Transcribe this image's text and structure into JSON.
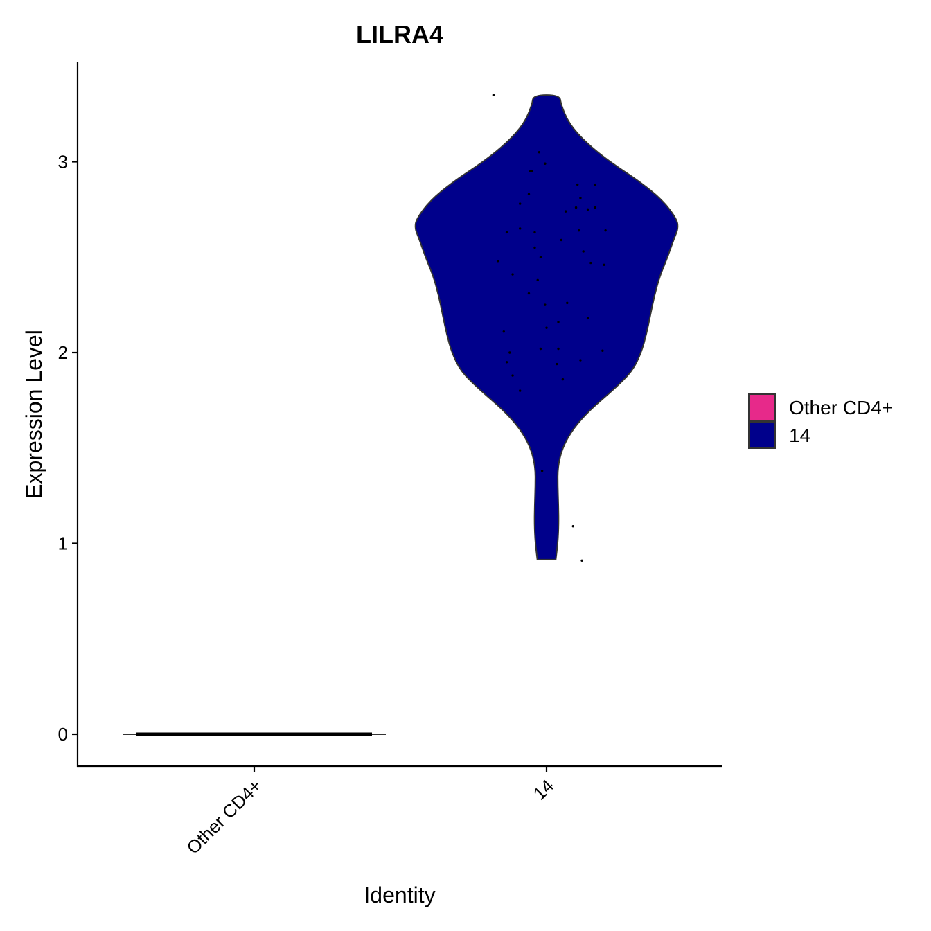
{
  "chart_data": {
    "type": "violin",
    "title": "LILRA4",
    "xlabel": "Identity",
    "ylabel": "Expression Level",
    "categories": [
      "Other CD4+",
      "14"
    ],
    "y_ticks": [
      "0",
      "1",
      "2",
      "3"
    ],
    "ylim": [
      -0.17,
      3.52
    ],
    "colors": {
      "Other CD4+": "#e7298a",
      "14": "#00008b"
    },
    "legend": {
      "position": "right",
      "entries": [
        {
          "label": "Other CD4+",
          "color": "#e7298a"
        },
        {
          "label": "14",
          "color": "#00008b"
        }
      ]
    },
    "series": [
      {
        "category": "Other CD4+",
        "points": [
          0,
          0,
          0,
          0,
          0,
          0,
          0,
          0,
          0,
          0,
          0,
          0,
          0,
          0,
          0,
          0,
          0,
          0,
          0,
          0,
          0,
          0,
          0,
          0,
          0,
          0,
          0,
          0,
          0,
          0,
          0,
          0,
          0,
          0,
          0,
          0,
          0,
          0,
          0,
          0,
          0,
          0,
          0,
          0,
          0,
          0,
          0,
          0,
          0,
          0,
          0,
          0,
          0,
          0,
          0,
          0,
          0,
          0,
          0,
          0
        ],
        "density_profile": [
          {
            "y": 0.0,
            "w": 1.0
          }
        ]
      },
      {
        "category": "14",
        "points": [
          {
            "x": -0.36,
            "y": 3.35
          },
          {
            "x": -0.05,
            "y": 3.05
          },
          {
            "x": -0.11,
            "y": 2.95
          },
          {
            "x": -0.1,
            "y": 2.95
          },
          {
            "x": -0.01,
            "y": 2.99
          },
          {
            "x": 0.21,
            "y": 2.88
          },
          {
            "x": 0.33,
            "y": 2.88
          },
          {
            "x": -0.12,
            "y": 2.83
          },
          {
            "x": 0.23,
            "y": 2.81
          },
          {
            "x": -0.18,
            "y": 2.78
          },
          {
            "x": 0.2,
            "y": 2.76
          },
          {
            "x": 0.28,
            "y": 2.75
          },
          {
            "x": 0.33,
            "y": 2.76
          },
          {
            "x": 0.13,
            "y": 2.74
          },
          {
            "x": -0.18,
            "y": 2.65
          },
          {
            "x": 0.22,
            "y": 2.64
          },
          {
            "x": -0.27,
            "y": 2.63
          },
          {
            "x": -0.08,
            "y": 2.63
          },
          {
            "x": 0.4,
            "y": 2.64
          },
          {
            "x": 0.1,
            "y": 2.59
          },
          {
            "x": -0.08,
            "y": 2.55
          },
          {
            "x": 0.25,
            "y": 2.53
          },
          {
            "x": -0.04,
            "y": 2.5
          },
          {
            "x": -0.33,
            "y": 2.48
          },
          {
            "x": 0.3,
            "y": 2.47
          },
          {
            "x": 0.39,
            "y": 2.46
          },
          {
            "x": -0.23,
            "y": 2.41
          },
          {
            "x": -0.06,
            "y": 2.38
          },
          {
            "x": -0.12,
            "y": 2.31
          },
          {
            "x": 0.14,
            "y": 2.26
          },
          {
            "x": -0.01,
            "y": 2.25
          },
          {
            "x": 0.28,
            "y": 2.18
          },
          {
            "x": 0.08,
            "y": 2.16
          },
          {
            "x": 0.0,
            "y": 2.13
          },
          {
            "x": -0.29,
            "y": 2.11
          },
          {
            "x": -0.25,
            "y": 2.0
          },
          {
            "x": -0.04,
            "y": 2.02
          },
          {
            "x": 0.08,
            "y": 2.02
          },
          {
            "x": 0.38,
            "y": 2.01
          },
          {
            "x": -0.27,
            "y": 1.95
          },
          {
            "x": 0.07,
            "y": 1.94
          },
          {
            "x": 0.23,
            "y": 1.96
          },
          {
            "x": -0.23,
            "y": 1.88
          },
          {
            "x": 0.11,
            "y": 1.86
          },
          {
            "x": -0.18,
            "y": 1.8
          },
          {
            "x": -0.03,
            "y": 1.38
          },
          {
            "x": 0.18,
            "y": 1.09
          },
          {
            "x": 0.24,
            "y": 0.91
          }
        ],
        "density_profile": [
          {
            "y": 0.915,
            "w": 0.07
          },
          {
            "y": 1.0,
            "w": 0.085
          },
          {
            "y": 1.1,
            "w": 0.092
          },
          {
            "y": 1.2,
            "w": 0.09
          },
          {
            "y": 1.3,
            "w": 0.085
          },
          {
            "y": 1.4,
            "w": 0.085
          },
          {
            "y": 1.5,
            "w": 0.12
          },
          {
            "y": 1.6,
            "w": 0.2
          },
          {
            "y": 1.7,
            "w": 0.33
          },
          {
            "y": 1.8,
            "w": 0.5
          },
          {
            "y": 1.9,
            "w": 0.65
          },
          {
            "y": 2.0,
            "w": 0.72
          },
          {
            "y": 2.1,
            "w": 0.76
          },
          {
            "y": 2.2,
            "w": 0.79
          },
          {
            "y": 2.3,
            "w": 0.82
          },
          {
            "y": 2.4,
            "w": 0.86
          },
          {
            "y": 2.5,
            "w": 0.92
          },
          {
            "y": 2.6,
            "w": 0.97
          },
          {
            "y": 2.65,
            "w": 1.0
          },
          {
            "y": 2.7,
            "w": 0.99
          },
          {
            "y": 2.8,
            "w": 0.88
          },
          {
            "y": 2.9,
            "w": 0.7
          },
          {
            "y": 3.0,
            "w": 0.48
          },
          {
            "y": 3.1,
            "w": 0.3
          },
          {
            "y": 3.2,
            "w": 0.17
          },
          {
            "y": 3.3,
            "w": 0.11
          },
          {
            "y": 3.35,
            "w": 0.1
          }
        ]
      }
    ]
  }
}
